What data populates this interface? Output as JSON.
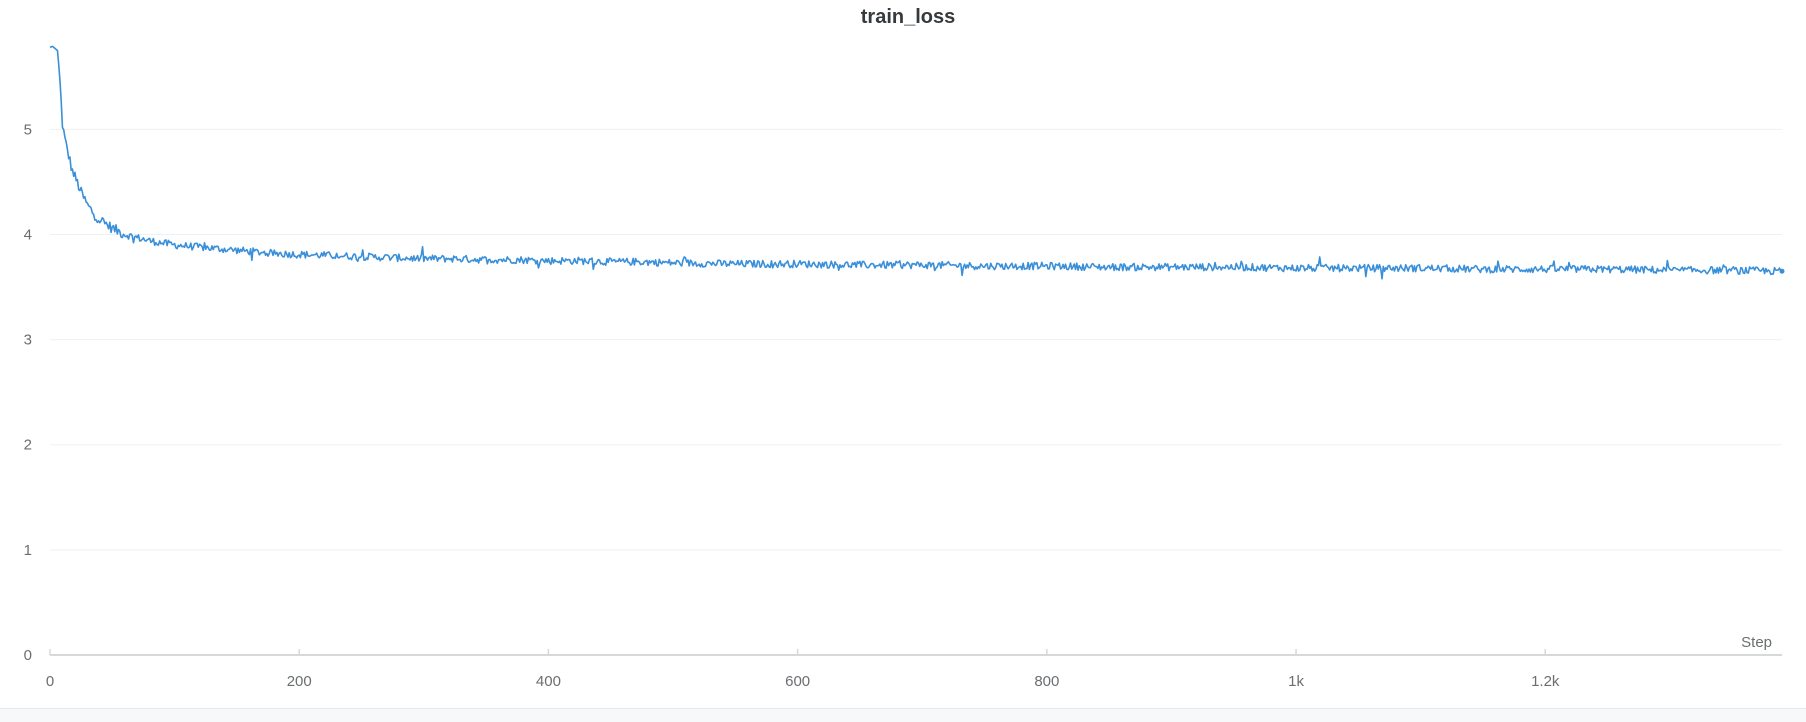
{
  "chart_data": {
    "type": "line",
    "title": "train_loss",
    "xlabel": "Step",
    "ylabel": "",
    "xlim": [
      0,
      1390
    ],
    "ylim": [
      0,
      5.85
    ],
    "x_ticks": [
      {
        "value": 0,
        "label": "0"
      },
      {
        "value": 200,
        "label": "200"
      },
      {
        "value": 400,
        "label": "400"
      },
      {
        "value": 600,
        "label": "600"
      },
      {
        "value": 800,
        "label": "800"
      },
      {
        "value": 1000,
        "label": "1k"
      },
      {
        "value": 1200,
        "label": "1.2k"
      }
    ],
    "y_ticks": [
      {
        "value": 0,
        "label": "0"
      },
      {
        "value": 1,
        "label": "1"
      },
      {
        "value": 2,
        "label": "2"
      },
      {
        "value": 3,
        "label": "3"
      },
      {
        "value": 4,
        "label": "4"
      },
      {
        "value": 5,
        "label": "5"
      }
    ],
    "grid": true,
    "legend": "none",
    "series": [
      {
        "color": "#3a8fd9",
        "x": [
          0,
          2,
          4,
          6,
          8,
          10,
          12,
          15,
          18,
          20,
          25,
          30,
          35,
          40,
          45,
          50,
          55,
          60,
          70,
          80,
          90,
          100,
          120,
          140,
          160,
          180,
          200,
          225,
          250,
          275,
          300,
          325,
          350,
          375,
          400,
          425,
          450,
          475,
          500,
          550,
          600,
          650,
          700,
          750,
          800,
          850,
          900,
          950,
          1000,
          1050,
          1100,
          1150,
          1200,
          1250,
          1300,
          1350,
          1390
        ],
        "y": [
          5.78,
          5.79,
          5.77,
          5.75,
          5.45,
          5.05,
          4.9,
          4.75,
          4.6,
          4.55,
          4.4,
          4.28,
          4.2,
          4.14,
          4.1,
          4.06,
          4.03,
          4.0,
          3.97,
          3.94,
          3.92,
          3.9,
          3.88,
          3.86,
          3.84,
          3.82,
          3.81,
          3.8,
          3.79,
          3.78,
          3.77,
          3.77,
          3.76,
          3.76,
          3.75,
          3.75,
          3.74,
          3.74,
          3.73,
          3.72,
          3.72,
          3.71,
          3.71,
          3.7,
          3.7,
          3.69,
          3.69,
          3.69,
          3.68,
          3.68,
          3.68,
          3.67,
          3.67,
          3.67,
          3.66,
          3.66,
          3.65
        ]
      }
    ]
  }
}
